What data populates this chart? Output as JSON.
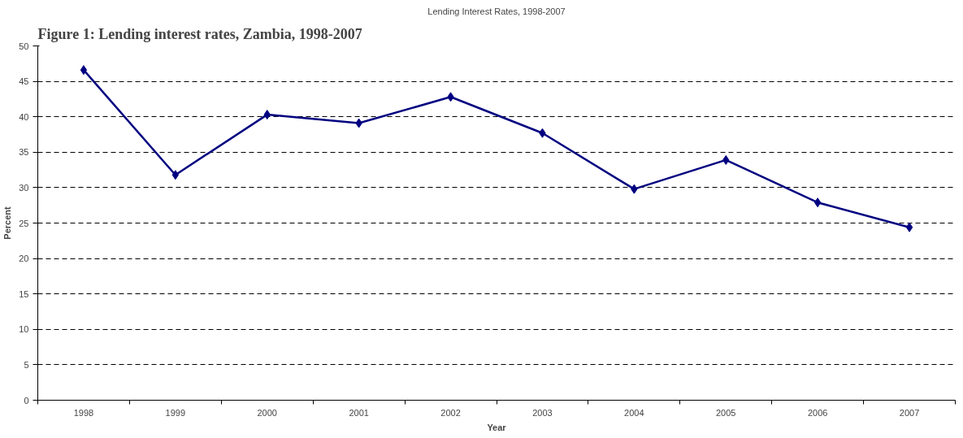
{
  "chart_data": {
    "type": "line",
    "title": "Lending Interest Rates, 1998-2007",
    "xlabel": "Year",
    "ylabel": "Percent",
    "annotations": [
      "Figure 1: Lending interest rates, Zambia, 1998-2007"
    ],
    "categories": [
      "1998",
      "1999",
      "2000",
      "2001",
      "2002",
      "2003",
      "2004",
      "2005",
      "2006",
      "2007"
    ],
    "series": [
      {
        "color": "#000080",
        "values": [
          46.6,
          31.8,
          40.3,
          39.1,
          42.8,
          37.7,
          29.8,
          33.9,
          27.9,
          24.4
        ]
      }
    ],
    "ylim": [
      0,
      50
    ],
    "yticks": [
      0,
      5,
      10,
      15,
      20,
      25,
      30,
      35,
      40,
      45,
      50
    ],
    "grid": "y",
    "marker": "diamond",
    "line_style": "solid"
  }
}
